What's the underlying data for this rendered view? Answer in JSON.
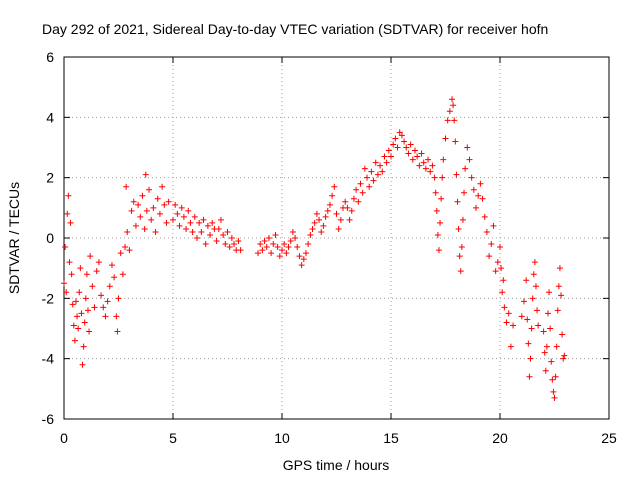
{
  "chart_data": {
    "type": "scatter",
    "title": "Day 292 of 2021, Sidereal Day-to-day VTEC variation (SDTVAR) for receiver hofn",
    "xlabel": "GPS time / hours",
    "ylabel": "SDTVAR / TECUs",
    "xlim": [
      0,
      25
    ],
    "ylim": [
      -6,
      6
    ],
    "xticks": [
      0,
      5,
      10,
      15,
      20,
      25
    ],
    "yticks": [
      -6,
      -4,
      -2,
      0,
      2,
      4,
      6
    ],
    "xtick_labels": [
      "0",
      "5",
      "10",
      "15",
      "20",
      "25"
    ],
    "ytick_labels": [
      "-6",
      "-4",
      "-2",
      "0",
      "2",
      "4",
      "6"
    ],
    "grid": true,
    "marker": "+",
    "series": [
      {
        "name": "SDTVAR",
        "color": "#ff0000",
        "points": [
          [
            0.0,
            -1.5
          ],
          [
            0.05,
            -0.3
          ],
          [
            0.1,
            -1.8
          ],
          [
            0.15,
            0.8
          ],
          [
            0.2,
            1.4
          ],
          [
            0.25,
            -0.8
          ],
          [
            0.3,
            0.5
          ],
          [
            0.35,
            -1.2
          ],
          [
            0.4,
            -2.2
          ],
          [
            0.45,
            -2.9
          ],
          [
            0.5,
            -3.4
          ],
          [
            0.55,
            -2.1
          ],
          [
            0.6,
            -2.6
          ],
          [
            0.65,
            -3.0
          ],
          [
            0.7,
            -1.8
          ],
          [
            0.75,
            -1.0
          ],
          [
            0.8,
            -2.5
          ],
          [
            0.85,
            -4.2
          ],
          [
            0.9,
            -3.6
          ],
          [
            0.95,
            -2.8
          ],
          [
            1.0,
            -2.0
          ],
          [
            1.05,
            -1.2
          ],
          [
            1.1,
            -2.4
          ],
          [
            1.15,
            -3.1
          ],
          [
            1.2,
            -0.6
          ],
          [
            1.3,
            -1.6
          ],
          [
            1.4,
            -2.3
          ],
          [
            1.5,
            -1.1
          ],
          [
            1.6,
            -0.8
          ],
          [
            1.7,
            -1.9
          ],
          [
            1.8,
            -2.3
          ],
          [
            1.9,
            -2.6
          ],
          [
            2.0,
            -2.1
          ],
          [
            2.1,
            -1.6
          ],
          [
            2.2,
            -0.9
          ],
          [
            2.3,
            -1.3
          ],
          [
            2.4,
            -2.6
          ],
          [
            2.45,
            -3.1
          ],
          [
            2.5,
            -2.0
          ],
          [
            2.6,
            -0.5
          ],
          [
            2.7,
            -1.2
          ],
          [
            2.8,
            -0.3
          ],
          [
            2.85,
            1.7
          ],
          [
            2.9,
            0.2
          ],
          [
            3.0,
            -0.4
          ],
          [
            3.1,
            0.9
          ],
          [
            3.2,
            1.2
          ],
          [
            3.3,
            0.4
          ],
          [
            3.4,
            1.1
          ],
          [
            3.5,
            0.7
          ],
          [
            3.6,
            1.4
          ],
          [
            3.7,
            0.3
          ],
          [
            3.75,
            2.1
          ],
          [
            3.8,
            0.9
          ],
          [
            3.9,
            1.6
          ],
          [
            4.0,
            0.6
          ],
          [
            4.1,
            1.0
          ],
          [
            4.2,
            0.2
          ],
          [
            4.3,
            1.3
          ],
          [
            4.4,
            0.8
          ],
          [
            4.5,
            1.7
          ],
          [
            4.6,
            1.1
          ],
          [
            4.7,
            0.5
          ],
          [
            4.8,
            1.2
          ],
          [
            5.0,
            0.6
          ],
          [
            5.1,
            1.1
          ],
          [
            5.2,
            0.8
          ],
          [
            5.3,
            0.4
          ],
          [
            5.4,
            1.0
          ],
          [
            5.5,
            0.7
          ],
          [
            5.6,
            0.3
          ],
          [
            5.7,
            0.9
          ],
          [
            5.8,
            0.5
          ],
          [
            5.9,
            0.2
          ],
          [
            6.0,
            0.7
          ],
          [
            6.1,
            0.0
          ],
          [
            6.2,
            0.5
          ],
          [
            6.3,
            0.2
          ],
          [
            6.4,
            0.6
          ],
          [
            6.5,
            -0.2
          ],
          [
            6.6,
            0.4
          ],
          [
            6.7,
            0.1
          ],
          [
            6.8,
            0.5
          ],
          [
            6.9,
            0.3
          ],
          [
            7.0,
            -0.1
          ],
          [
            7.1,
            0.3
          ],
          [
            7.2,
            0.6
          ],
          [
            7.3,
            0.1
          ],
          [
            7.4,
            -0.2
          ],
          [
            7.5,
            0.2
          ],
          [
            7.6,
            -0.3
          ],
          [
            7.7,
            0.0
          ],
          [
            7.8,
            -0.2
          ],
          [
            7.9,
            -0.4
          ],
          [
            8.0,
            -0.1
          ],
          [
            8.1,
            -0.4
          ],
          [
            8.9,
            -0.5
          ],
          [
            9.0,
            -0.2
          ],
          [
            9.1,
            -0.4
          ],
          [
            9.2,
            -0.1
          ],
          [
            9.3,
            -0.3
          ],
          [
            9.4,
            0.0
          ],
          [
            9.5,
            -0.5
          ],
          [
            9.6,
            -0.2
          ],
          [
            9.7,
            0.1
          ],
          [
            9.8,
            -0.3
          ],
          [
            9.9,
            -0.6
          ],
          [
            10.0,
            -0.4
          ],
          [
            10.1,
            -0.2
          ],
          [
            10.2,
            -0.5
          ],
          [
            10.3,
            -0.3
          ],
          [
            10.4,
            -0.1
          ],
          [
            10.5,
            0.2
          ],
          [
            10.6,
            0.0
          ],
          [
            10.7,
            -0.3
          ],
          [
            10.8,
            -0.6
          ],
          [
            10.9,
            -0.9
          ],
          [
            11.0,
            -0.7
          ],
          [
            11.1,
            -0.5
          ],
          [
            11.2,
            -0.2
          ],
          [
            11.3,
            0.1
          ],
          [
            11.4,
            0.3
          ],
          [
            11.5,
            0.5
          ],
          [
            11.6,
            0.8
          ],
          [
            11.7,
            0.6
          ],
          [
            11.8,
            0.2
          ],
          [
            11.9,
            0.4
          ],
          [
            12.0,
            0.7
          ],
          [
            12.1,
            0.9
          ],
          [
            12.2,
            1.1
          ],
          [
            12.3,
            1.4
          ],
          [
            12.4,
            1.7
          ],
          [
            12.5,
            0.8
          ],
          [
            12.6,
            0.3
          ],
          [
            12.7,
            0.6
          ],
          [
            12.8,
            1.0
          ],
          [
            12.9,
            1.2
          ],
          [
            13.0,
            1.0
          ],
          [
            13.1,
            0.6
          ],
          [
            13.2,
            0.9
          ],
          [
            13.3,
            1.3
          ],
          [
            13.4,
            1.6
          ],
          [
            13.5,
            1.2
          ],
          [
            13.6,
            1.8
          ],
          [
            13.7,
            1.5
          ],
          [
            13.8,
            2.3
          ],
          [
            13.9,
            2.0
          ],
          [
            14.0,
            1.7
          ],
          [
            14.1,
            2.2
          ],
          [
            14.2,
            1.9
          ],
          [
            14.3,
            2.5
          ],
          [
            14.4,
            2.1
          ],
          [
            14.5,
            2.4
          ],
          [
            14.6,
            2.2
          ],
          [
            14.7,
            2.7
          ],
          [
            14.8,
            2.5
          ],
          [
            14.9,
            2.9
          ],
          [
            15.0,
            2.7
          ],
          [
            15.1,
            3.1
          ],
          [
            15.2,
            3.3
          ],
          [
            15.3,
            3.0
          ],
          [
            15.4,
            3.5
          ],
          [
            15.5,
            3.4
          ],
          [
            15.6,
            3.2
          ],
          [
            15.7,
            3.0
          ],
          [
            15.8,
            2.8
          ],
          [
            15.9,
            3.1
          ],
          [
            16.0,
            2.6
          ],
          [
            16.1,
            2.9
          ],
          [
            16.2,
            2.7
          ],
          [
            16.3,
            2.4
          ],
          [
            16.4,
            2.8
          ],
          [
            16.5,
            2.5
          ],
          [
            16.6,
            2.3
          ],
          [
            16.7,
            2.6
          ],
          [
            16.8,
            2.2
          ],
          [
            16.9,
            2.4
          ],
          [
            17.0,
            2.0
          ],
          [
            17.05,
            1.5
          ],
          [
            17.1,
            0.9
          ],
          [
            17.15,
            0.1
          ],
          [
            17.2,
            -0.4
          ],
          [
            17.25,
            0.5
          ],
          [
            17.3,
            1.3
          ],
          [
            17.35,
            2.0
          ],
          [
            17.4,
            2.6
          ],
          [
            17.5,
            3.3
          ],
          [
            17.6,
            3.9
          ],
          [
            17.7,
            4.2
          ],
          [
            17.8,
            4.6
          ],
          [
            17.85,
            4.4
          ],
          [
            17.9,
            3.9
          ],
          [
            17.95,
            3.2
          ],
          [
            18.0,
            2.1
          ],
          [
            18.05,
            1.2
          ],
          [
            18.1,
            0.3
          ],
          [
            18.15,
            -0.6
          ],
          [
            18.2,
            -1.1
          ],
          [
            18.25,
            -0.3
          ],
          [
            18.3,
            0.6
          ],
          [
            18.35,
            1.5
          ],
          [
            18.4,
            2.3
          ],
          [
            18.5,
            3.0
          ],
          [
            18.6,
            2.6
          ],
          [
            18.7,
            2.0
          ],
          [
            18.8,
            1.6
          ],
          [
            18.9,
            1.0
          ],
          [
            19.0,
            1.4
          ],
          [
            19.1,
            1.8
          ],
          [
            19.2,
            1.3
          ],
          [
            19.3,
            0.7
          ],
          [
            19.4,
            0.2
          ],
          [
            19.5,
            -0.6
          ],
          [
            19.6,
            -0.2
          ],
          [
            19.7,
            0.4
          ],
          [
            19.8,
            -1.1
          ],
          [
            19.9,
            -0.8
          ],
          [
            20.0,
            -0.3
          ],
          [
            20.05,
            -1.0
          ],
          [
            20.1,
            -1.8
          ],
          [
            20.15,
            -1.4
          ],
          [
            20.2,
            -2.3
          ],
          [
            20.3,
            -2.8
          ],
          [
            20.4,
            -2.5
          ],
          [
            20.5,
            -3.6
          ],
          [
            20.6,
            -2.9
          ],
          [
            21.0,
            -2.6
          ],
          [
            21.1,
            -2.1
          ],
          [
            21.2,
            -1.4
          ],
          [
            21.25,
            -2.7
          ],
          [
            21.3,
            -3.5
          ],
          [
            21.35,
            -4.6
          ],
          [
            21.4,
            -4.0
          ],
          [
            21.45,
            -3.0
          ],
          [
            21.5,
            -2.0
          ],
          [
            21.55,
            -1.2
          ],
          [
            21.6,
            -0.8
          ],
          [
            21.65,
            -1.6
          ],
          [
            21.7,
            -2.4
          ],
          [
            21.75,
            -2.9
          ],
          [
            22.0,
            -3.1
          ],
          [
            22.05,
            -3.8
          ],
          [
            22.1,
            -4.4
          ],
          [
            22.15,
            -3.6
          ],
          [
            22.2,
            -2.5
          ],
          [
            22.25,
            -1.8
          ],
          [
            22.3,
            -3.0
          ],
          [
            22.35,
            -4.1
          ],
          [
            22.4,
            -4.7
          ],
          [
            22.45,
            -5.1
          ],
          [
            22.5,
            -5.3
          ],
          [
            22.55,
            -4.6
          ],
          [
            22.6,
            -3.6
          ],
          [
            22.65,
            -2.4
          ],
          [
            22.7,
            -1.6
          ],
          [
            22.75,
            -1.0
          ],
          [
            22.8,
            -1.9
          ],
          [
            22.85,
            -3.2
          ],
          [
            22.9,
            -4.0
          ],
          [
            22.95,
            -3.9
          ]
        ]
      }
    ]
  },
  "colors": {
    "marker": "#ff0000",
    "grid": "#a0a0a0",
    "axis": "#000000",
    "background": "#ffffff"
  }
}
